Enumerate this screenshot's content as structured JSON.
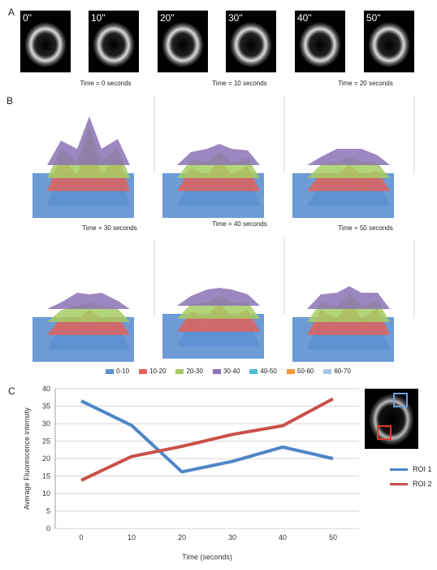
{
  "panel_labels": {
    "a": "A",
    "b": "B",
    "c": "C"
  },
  "thumbnails": [
    "0\"",
    "10\"",
    "20\"",
    "30\"",
    "40\"",
    "50\""
  ],
  "surface_plots": [
    {
      "title": "Time = 0 seconds"
    },
    {
      "title": "Time = 10 seconds"
    },
    {
      "title": "Time = 20 seconds"
    },
    {
      "title": "Time = 30 seconds"
    },
    {
      "title": "Time = 40 seconds"
    },
    {
      "title": "Time = 50 seconds"
    }
  ],
  "surface_legend": [
    {
      "label": "0-10",
      "color": "#5b8fd0"
    },
    {
      "label": "10-20",
      "color": "#e0615a"
    },
    {
      "label": "20-30",
      "color": "#a7cc63"
    },
    {
      "label": "30-40",
      "color": "#8b73b5"
    },
    {
      "label": "40-50",
      "color": "#4cbcd6"
    },
    {
      "label": "50-60",
      "color": "#f39a3b"
    },
    {
      "label": "60-70",
      "color": "#a9c4e6"
    }
  ],
  "chart_data": {
    "type": "line",
    "x": [
      0,
      10,
      20,
      30,
      40,
      50
    ],
    "series": [
      {
        "name": "ROI 1",
        "color": "#4f86c6",
        "values": [
          36.5,
          29.5,
          16.2,
          19.2,
          23.3,
          20.0
        ]
      },
      {
        "name": "ROI 2",
        "color": "#c9504a",
        "values": [
          13.8,
          20.6,
          23.5,
          26.9,
          29.4,
          37.1
        ]
      }
    ],
    "xlabel": "Time (seconds)",
    "ylabel": "Average Fluorescence intensity",
    "ylim": [
      0,
      40
    ],
    "yticks": [
      0,
      5,
      10,
      15,
      20,
      25,
      30,
      35,
      40
    ],
    "xticks": [
      "0",
      "10",
      "20",
      "30",
      "40",
      "50"
    ],
    "grid": true,
    "legend_position": "right"
  }
}
